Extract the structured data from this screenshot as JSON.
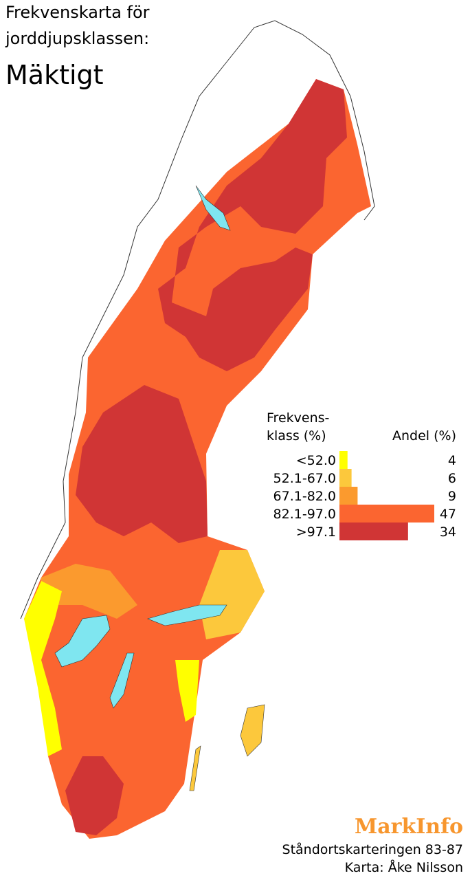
{
  "header": {
    "title_lines": [
      "Frekvenskarta för",
      "jorddjupsklassen:"
    ],
    "subtitle": "Mäktigt"
  },
  "legend": {
    "class_header_lines": [
      "Frekvens-",
      "klass (%)"
    ],
    "share_header": "Andel (%)",
    "classes": [
      {
        "label": "<52.0",
        "value": 4,
        "color": "#ffff00"
      },
      {
        "label": "52.1-67.0",
        "value": 6,
        "color": "#fcc83c"
      },
      {
        "label": "67.1-82.0",
        "value": 9,
        "color": "#fb9a2e"
      },
      {
        "label": "82.1-97.0",
        "value": 47,
        "color": "#fb6530"
      },
      {
        "label": ">97.1",
        "value": 34,
        "color": "#d03535"
      }
    ]
  },
  "footer": {
    "brand": "MarkInfo",
    "source": "Ståndortskarteringen 83-87",
    "credit": "Karta: Åke Nilsson"
  }
}
